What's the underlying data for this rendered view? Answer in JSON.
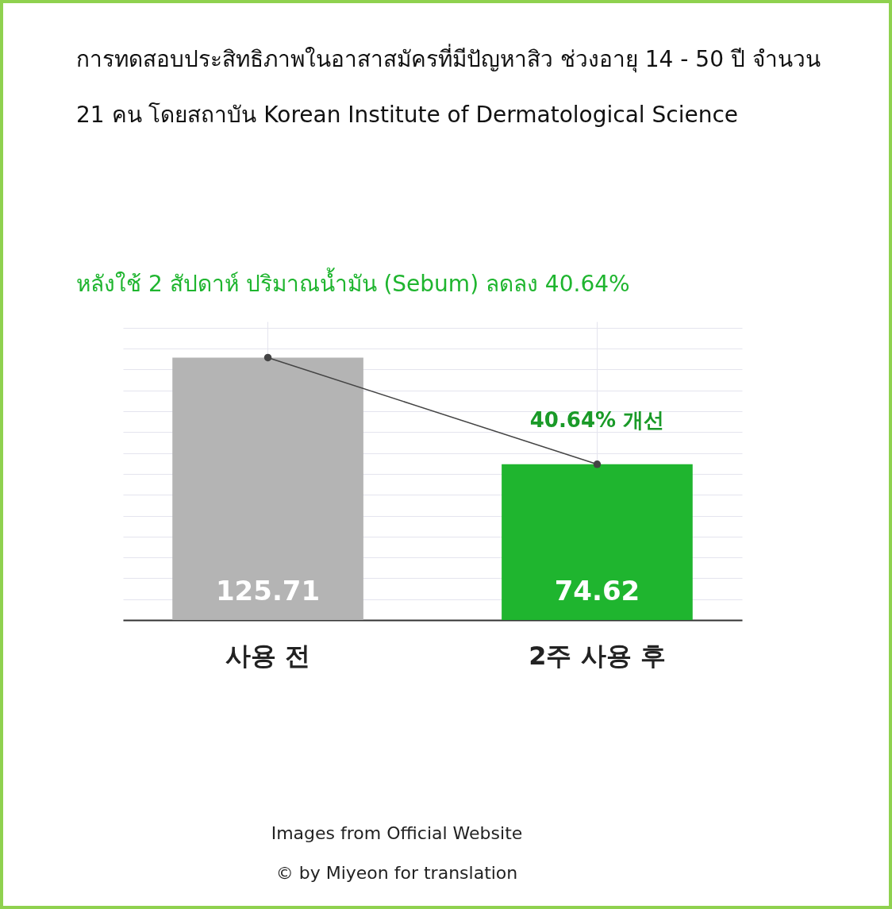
{
  "chart_data": {
    "type": "bar",
    "title": "การทดสอบประสิทธิภาพในอาสาสมัครที่มีปัญหาสิว ช่วงอายุ 14 - 50 ปี จำนวน 21 คน โดยสถาบัน Korean Institute of Dermatological Science",
    "subtitle": "หลังใช้ 2 สัปดาห์ ปริมาณน้ำมัน (Sebum) ลดลง 40.64%",
    "categories": [
      "사용 전",
      "2주 사용 후"
    ],
    "series": [
      {
        "colors": [
          "#b4b4b4",
          "#1fb52f"
        ],
        "values": [
          125.71,
          74.62
        ],
        "value_labels": [
          "125.71",
          "74.62"
        ]
      },
      {
        "type": "line",
        "color": "#444444",
        "values": [
          125.71,
          74.62
        ]
      }
    ],
    "ylim": [
      0,
      143
    ],
    "grid": true,
    "marker": "circle",
    "tick_labels": "x",
    "annotations": [
      {
        "text": "40.64% 개선",
        "x": "2주 사용 후",
        "y": 74.62
      },
      "Images from Official Website",
      "© by Miyeon for translation"
    ]
  }
}
